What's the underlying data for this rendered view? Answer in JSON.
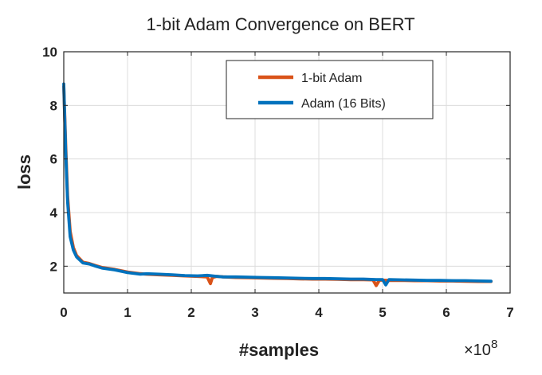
{
  "chart_data": {
    "type": "line",
    "title": "1-bit Adam Convergence on BERT",
    "xlabel": "#samples",
    "ylabel": "loss",
    "x_multiplier_label": "×10",
    "x_multiplier_exponent": "8",
    "xlim": [
      0,
      7
    ],
    "ylim": [
      1,
      10
    ],
    "xticks": [
      0,
      1,
      2,
      3,
      4,
      5,
      6,
      7
    ],
    "yticks": [
      2,
      4,
      6,
      8,
      10
    ],
    "grid": true,
    "legend_position": "top-right",
    "series": [
      {
        "name": "1-bit Adam",
        "color": "#d95319",
        "x": [
          0,
          0.03,
          0.06,
          0.1,
          0.15,
          0.2,
          0.3,
          0.4,
          0.5,
          0.6,
          0.8,
          1.0,
          1.2,
          1.3,
          1.5,
          1.7,
          1.9,
          2.1,
          2.25,
          2.3,
          2.33,
          2.4,
          2.5,
          2.7,
          2.9,
          3.1,
          3.3,
          3.5,
          3.7,
          3.9,
          4.1,
          4.3,
          4.5,
          4.7,
          4.85,
          4.9,
          4.95,
          5.1,
          5.3,
          5.5,
          5.7,
          5.9,
          6.1,
          6.3,
          6.5,
          6.7
        ],
        "values": [
          8.7,
          6.5,
          4.6,
          3.3,
          2.7,
          2.4,
          2.15,
          2.1,
          2.02,
          1.95,
          1.88,
          1.78,
          1.72,
          1.7,
          1.68,
          1.66,
          1.64,
          1.62,
          1.6,
          1.35,
          1.58,
          1.62,
          1.6,
          1.58,
          1.57,
          1.56,
          1.55,
          1.54,
          1.53,
          1.52,
          1.52,
          1.51,
          1.5,
          1.5,
          1.49,
          1.28,
          1.48,
          1.47,
          1.47,
          1.46,
          1.46,
          1.45,
          1.45,
          1.44,
          1.43,
          1.43
        ]
      },
      {
        "name": "Adam (16 Bits)",
        "color": "#0072bd",
        "x": [
          0,
          0.03,
          0.06,
          0.1,
          0.15,
          0.2,
          0.3,
          0.4,
          0.5,
          0.6,
          0.8,
          1.0,
          1.2,
          1.3,
          1.5,
          1.7,
          1.9,
          2.1,
          2.25,
          2.4,
          2.5,
          2.7,
          2.9,
          3.1,
          3.3,
          3.5,
          3.7,
          3.9,
          4.1,
          4.3,
          4.5,
          4.7,
          4.9,
          5.0,
          5.05,
          5.1,
          5.3,
          5.5,
          5.7,
          5.9,
          6.1,
          6.3,
          6.5,
          6.7
        ],
        "values": [
          8.8,
          6.3,
          4.4,
          3.1,
          2.6,
          2.35,
          2.12,
          2.08,
          2.0,
          1.93,
          1.86,
          1.76,
          1.7,
          1.72,
          1.7,
          1.68,
          1.65,
          1.64,
          1.66,
          1.62,
          1.6,
          1.6,
          1.59,
          1.58,
          1.57,
          1.56,
          1.55,
          1.54,
          1.54,
          1.53,
          1.52,
          1.52,
          1.5,
          1.5,
          1.3,
          1.5,
          1.49,
          1.48,
          1.47,
          1.47,
          1.46,
          1.46,
          1.45,
          1.44
        ]
      }
    ]
  }
}
